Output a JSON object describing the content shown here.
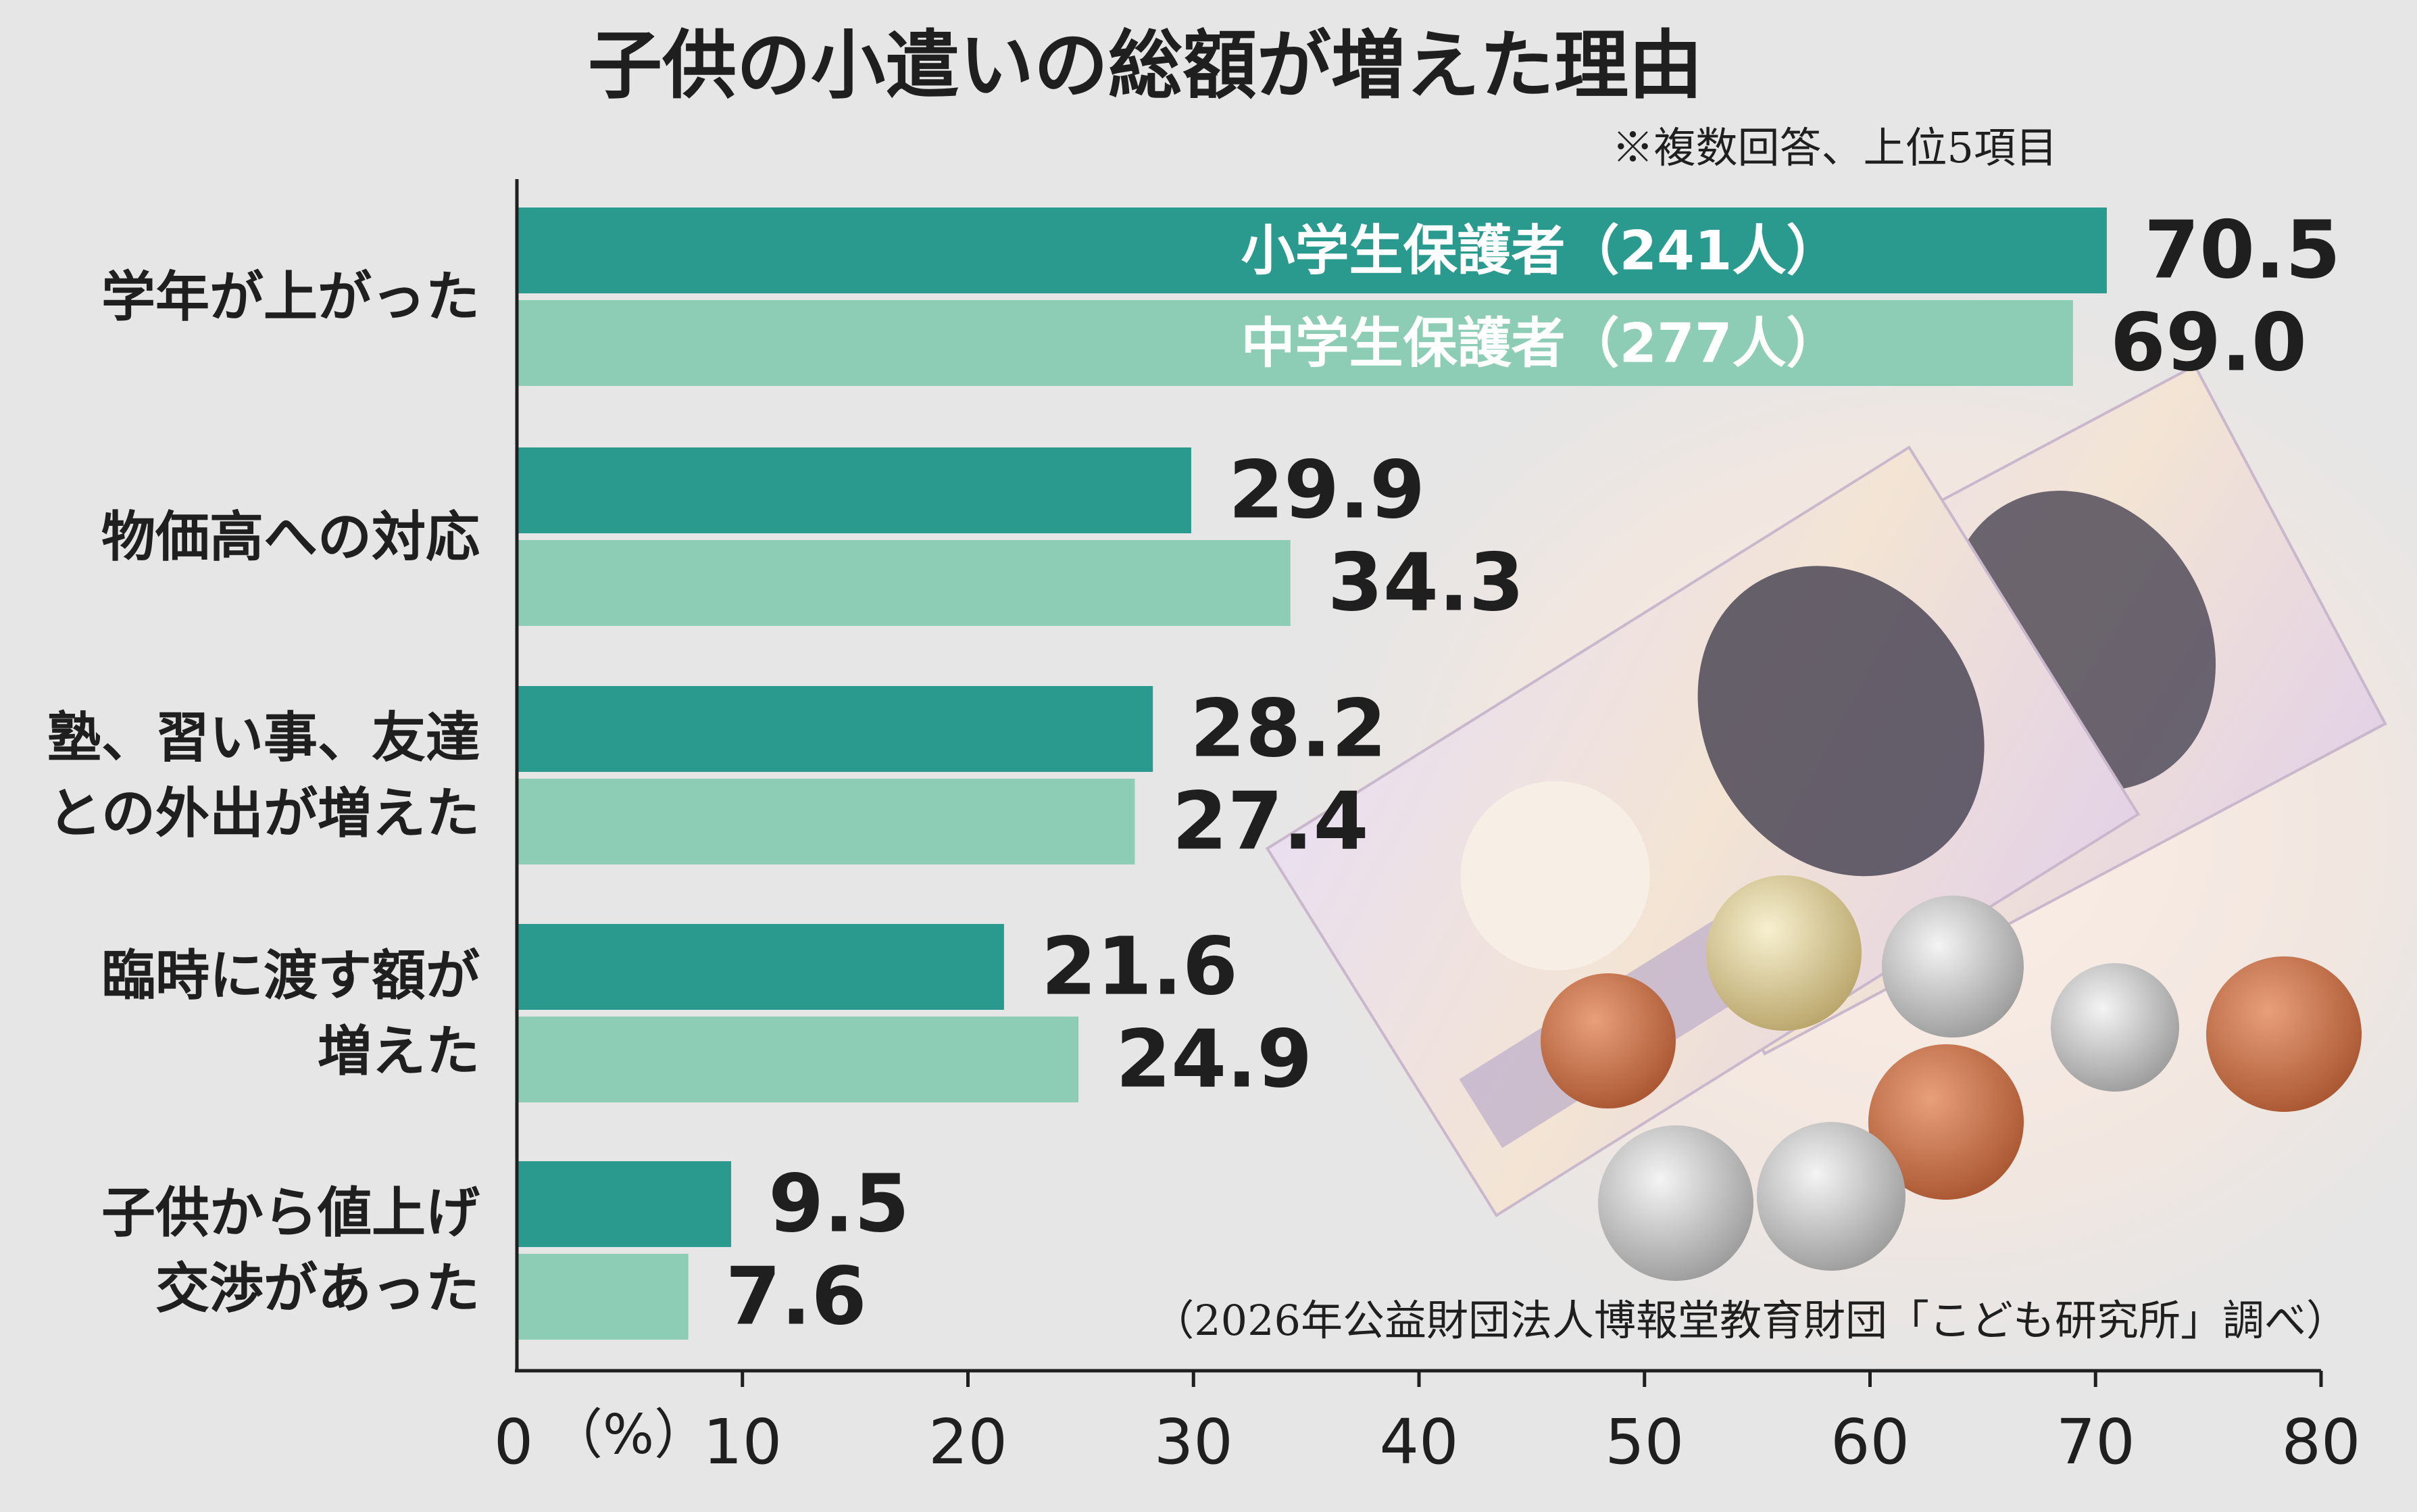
{
  "chart_data": {
    "type": "bar",
    "orientation": "horizontal",
    "title": "子供の小遣いの総額が増えた理由",
    "note": "※複数回答、上位5項目",
    "source": "（2026年公益財団法人博報堂教育財団「こども研究所」調べ）",
    "xlabel": "（%）",
    "xlim": [
      0,
      80
    ],
    "xticks": [
      0,
      10,
      20,
      30,
      40,
      50,
      60,
      70,
      80
    ],
    "categories": [
      [
        "学年が上がった"
      ],
      [
        "物価高への対応"
      ],
      [
        "塾、習い事、友達",
        "との外出が増えた"
      ],
      [
        "臨時に渡す額が",
        "増えた"
      ],
      [
        "子供から値上げ",
        "交渉があった"
      ]
    ],
    "series": [
      {
        "name": "小学生保護者（241人）",
        "color": "#2a9a8f",
        "values": [
          70.5,
          29.9,
          28.2,
          21.6,
          9.5
        ]
      },
      {
        "name": "中学生保護者（277人）",
        "color": "#8dcdb6",
        "values": [
          69.0,
          34.3,
          27.4,
          24.9,
          7.6
        ]
      }
    ],
    "value_labels": [
      [
        "70.5",
        "29.9",
        "28.2",
        "21.6",
        "9.5"
      ],
      [
        "69.0",
        "34.3",
        "27.4",
        "24.9",
        "7.6"
      ]
    ],
    "legend_placement": "inside-top-bars",
    "grid": false
  },
  "colors": {
    "background": "#e6e6e6",
    "text": "#1f1f1f",
    "series_light_label": "#ffffff"
  }
}
